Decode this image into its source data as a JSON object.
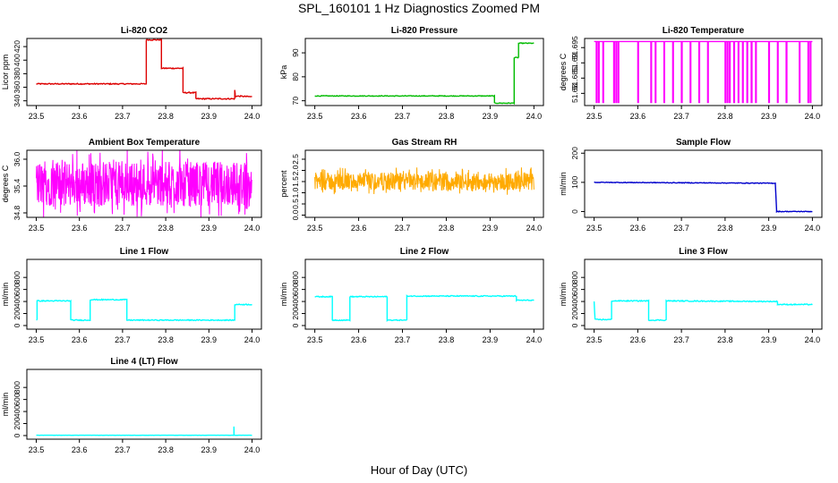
{
  "title": "SPL_160101  1 Hz Diagnostics Zoomed PM",
  "xlabel": "Hour of Day (UTC)",
  "chart_data": [
    {
      "type": "line",
      "title": "Li-820 CO2",
      "ylabel": "Licor ppm",
      "color": "#dd0000",
      "xlim": [
        23.5,
        24.0
      ],
      "ylim": [
        333,
        432
      ],
      "yticks": [
        340,
        360,
        380,
        400,
        420
      ],
      "xticks": [
        "23.5",
        "23.6",
        "23.7",
        "23.8",
        "23.9",
        "24.0"
      ],
      "series": [
        {
          "x": [
            23.5,
            23.755,
            23.755,
            23.79,
            23.79,
            23.84,
            23.84,
            23.87,
            23.87,
            23.96,
            23.96,
            23.962,
            23.962,
            24.0
          ],
          "y": [
            365,
            365,
            430,
            430,
            388,
            388,
            352,
            352,
            343,
            343,
            355,
            345,
            347,
            346
          ]
        }
      ],
      "noise": 0.8,
      "spikes": [
        [
          23.96,
          356
        ]
      ]
    },
    {
      "type": "line",
      "title": "Li-820 Pressure",
      "ylabel": "kPa",
      "color": "#00bb00",
      "xlim": [
        23.5,
        24.0
      ],
      "ylim": [
        68,
        96
      ],
      "yticks": [
        70,
        80,
        90
      ],
      "xticks": [
        "23.5",
        "23.6",
        "23.7",
        "23.8",
        "23.9",
        "24.0"
      ],
      "series": [
        {
          "x": [
            23.5,
            23.91,
            23.91,
            23.955,
            23.955,
            23.965,
            23.965,
            24.0
          ],
          "y": [
            72,
            72,
            69,
            69,
            88,
            88,
            94,
            94
          ]
        }
      ],
      "noise": 0.15,
      "spikes": []
    },
    {
      "type": "line",
      "title": "Li-820 Temperature",
      "ylabel": "degrees C",
      "color": "#ff00ff",
      "xlim": [
        23.5,
        24.0
      ],
      "ylim": [
        51.676,
        51.698
      ],
      "yticks": [
        51.68,
        51.685,
        51.69,
        51.695
      ],
      "xticks": [
        "23.5",
        "23.6",
        "23.7",
        "23.8",
        "23.9",
        "24.0"
      ],
      "base": 51.697,
      "low": 51.677,
      "drop_x": [
        23.505,
        23.51,
        23.52,
        23.545,
        23.55,
        23.555,
        23.6,
        23.63,
        23.64,
        23.66,
        23.68,
        23.7,
        23.72,
        23.74,
        23.76,
        23.8,
        23.805,
        23.81,
        23.82,
        23.83,
        23.84,
        23.85,
        23.86,
        23.87,
        23.9,
        23.92,
        23.94,
        23.97,
        23.99,
        23.995
      ]
    },
    {
      "type": "line",
      "title": "Ambient Box Temperature",
      "ylabel": "degrees C",
      "color": "#ff00ff",
      "xlim": [
        23.5,
        24.0
      ],
      "ylim": [
        34.7,
        36.2
      ],
      "yticks": [
        34.8,
        35.4,
        36.0
      ],
      "xticks": [
        "23.5",
        "23.6",
        "23.7",
        "23.8",
        "23.9",
        "24.0"
      ],
      "band": [
        34.95,
        35.95
      ],
      "base": 35.45
    },
    {
      "type": "line",
      "title": "Gas Stream RH",
      "ylabel": "percent",
      "color": "#ffaa00",
      "xlim": [
        23.5,
        24.0
      ],
      "ylim": [
        -0.1,
        2.9
      ],
      "yticks": [
        0.0,
        0.5,
        1.0,
        1.5,
        2.0,
        2.5
      ],
      "xticks": [
        "23.5",
        "23.6",
        "23.7",
        "23.8",
        "23.9",
        "24.0"
      ],
      "band": [
        1.1,
        1.9
      ],
      "base": 1.5
    },
    {
      "type": "line",
      "title": "Sample Flow",
      "ylabel": "ml/min",
      "color": "#0000cc",
      "xlim": [
        23.5,
        24.0
      ],
      "ylim": [
        -20,
        210
      ],
      "yticks": [
        0,
        100,
        200
      ],
      "xticks": [
        "23.5",
        "23.6",
        "23.7",
        "23.8",
        "23.9",
        "24.0"
      ],
      "series": [
        {
          "x": [
            23.5,
            23.915,
            23.915,
            23.918,
            23.918,
            24.0
          ],
          "y": [
            100,
            97,
            97,
            5,
            0,
            0
          ]
        }
      ],
      "noise": 1.2,
      "spikes": []
    },
    {
      "type": "line",
      "title": "Line 1 Flow",
      "ylabel": "ml/min",
      "color": "#00ffff",
      "xlim": [
        23.5,
        24.0
      ],
      "ylim": [
        -60,
        1100
      ],
      "yticks": [
        0,
        200,
        400,
        600,
        800
      ],
      "xticks": [
        "23.5",
        "23.6",
        "23.7",
        "23.8",
        "23.9",
        "24.0"
      ],
      "series": [
        {
          "x": [
            23.5,
            23.502,
            23.502,
            23.58,
            23.58,
            23.625,
            23.625,
            23.71,
            23.71,
            23.96,
            23.96,
            24.0
          ],
          "y": [
            100,
            100,
            410,
            410,
            90,
            90,
            430,
            430,
            90,
            90,
            350,
            350
          ]
        }
      ],
      "noise": 8,
      "spikes": []
    },
    {
      "type": "line",
      "title": "Line 2 Flow",
      "ylabel": "ml/min",
      "color": "#00ffff",
      "xlim": [
        23.5,
        24.0
      ],
      "ylim": [
        -60,
        1100
      ],
      "yticks": [
        0,
        200,
        400,
        600,
        800
      ],
      "xticks": [
        "23.5",
        "23.6",
        "23.7",
        "23.8",
        "23.9",
        "24.0"
      ],
      "series": [
        {
          "x": [
            23.5,
            23.54,
            23.54,
            23.58,
            23.58,
            23.665,
            23.665,
            23.71,
            23.71,
            23.96,
            23.96,
            24.0
          ],
          "y": [
            480,
            480,
            90,
            90,
            480,
            480,
            90,
            90,
            490,
            490,
            420,
            420
          ]
        }
      ],
      "noise": 8,
      "spikes": []
    },
    {
      "type": "line",
      "title": "Line 3 Flow",
      "ylabel": "ml/min",
      "color": "#00ffff",
      "xlim": [
        23.5,
        24.0
      ],
      "ylim": [
        -60,
        1100
      ],
      "yticks": [
        0,
        200,
        400,
        600,
        800
      ],
      "xticks": [
        "23.5",
        "23.6",
        "23.7",
        "23.8",
        "23.9",
        "24.0"
      ],
      "series": [
        {
          "x": [
            23.5,
            23.502,
            23.502,
            23.54,
            23.54,
            23.625,
            23.625,
            23.665,
            23.665,
            23.92,
            23.92,
            24.0
          ],
          "y": [
            400,
            100,
            100,
            100,
            410,
            410,
            90,
            90,
            410,
            400,
            350,
            350
          ]
        }
      ],
      "noise": 8,
      "spikes": []
    },
    {
      "type": "line",
      "title": "Line 4 (LT) Flow",
      "ylabel": "ml/min",
      "color": "#00ffff",
      "xlim": [
        23.5,
        24.0
      ],
      "ylim": [
        -60,
        1100
      ],
      "yticks": [
        0,
        200,
        400,
        600,
        800
      ],
      "xticks": [
        "23.5",
        "23.6",
        "23.7",
        "23.8",
        "23.9",
        "24.0"
      ],
      "series": [
        {
          "x": [
            23.5,
            24.0
          ],
          "y": [
            5,
            5
          ]
        }
      ],
      "noise": 1,
      "spikes": [
        [
          23.958,
          150
        ]
      ]
    }
  ]
}
